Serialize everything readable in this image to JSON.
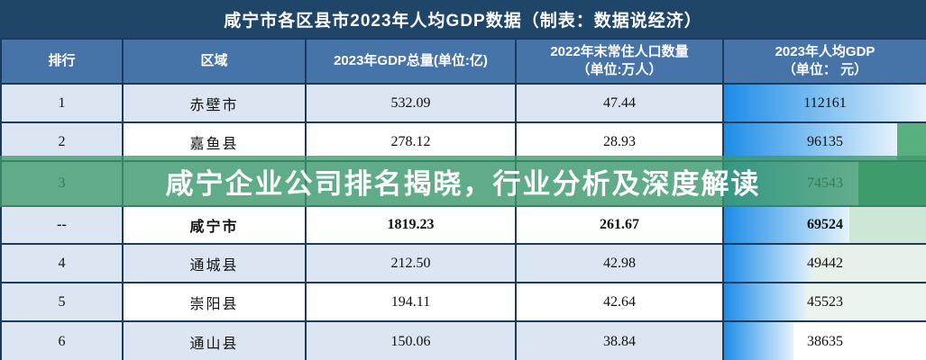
{
  "page_title": "咸宁市各区县市2023年人均GDP数据（制表：数据说经济）",
  "overlay_banner": {
    "text": "咸宁企业公司排名揭晓，行业分析及深度解读",
    "color": "#3d9a6a",
    "rgba": "rgba(61,154,106,0.78)"
  },
  "header": {
    "col_rank": "排行",
    "col_region": "区域",
    "col_gdp": "2023年GDP总量(单位:亿)",
    "col_pop_line1": "2022年末常住人口数量",
    "col_pop_line2": "（单位:万人）",
    "col_percap_line1": "2023年人均GDP",
    "col_percap_line2": "（单位： 元）"
  },
  "chart_data": {
    "type": "table",
    "title": "咸宁市各区县市2023年人均GDP数据",
    "source_note": "制表：数据说经济",
    "columns": [
      "排行",
      "区域",
      "2023年GDP总量(单位:亿)",
      "2022年末常住人口数量（单位:万人）",
      "2023年人均GDP（单位：元）"
    ],
    "per_capita_max": 112161,
    "rows": [
      {
        "rank": "1",
        "region": "赤壁市",
        "gdp_2023": "532.09",
        "population_2022": "47.44",
        "per_capita_gdp_2023": "112161",
        "bar_value": 112161,
        "obscured": false,
        "bar_bg_after": "#ffffff"
      },
      {
        "rank": "2",
        "region": "嘉鱼县",
        "gdp_2023": "278.12",
        "population_2022": "28.93",
        "per_capita_gdp_2023": "96135",
        "bar_value": 96135,
        "obscured": false,
        "bar_bg_after": "#58b07f"
      },
      {
        "rank": "3",
        "region": "",
        "gdp_2023": "",
        "population_2022": "",
        "per_capita_gdp_2023": "74543",
        "bar_value": 74543,
        "obscured": true,
        "bar_bg_after": "#3f9e71"
      },
      {
        "rank": "--",
        "region": "咸宁市",
        "gdp_2023": "1819.23",
        "population_2022": "261.67",
        "per_capita_gdp_2023": "69524",
        "bar_value": 69524,
        "obscured": false,
        "bar_bg_after": "#cde6d6"
      },
      {
        "rank": "4",
        "region": "通城县",
        "gdp_2023": "212.50",
        "population_2022": "42.98",
        "per_capita_gdp_2023": "49442",
        "bar_value": 49442,
        "obscured": false,
        "bar_bg_after": "#e7f1e9"
      },
      {
        "rank": "5",
        "region": "崇阳县",
        "gdp_2023": "194.11",
        "population_2022": "42.64",
        "per_capita_gdp_2023": "45523",
        "bar_value": 45523,
        "obscured": false,
        "bar_bg_after": "#eaf3ec"
      },
      {
        "rank": "6",
        "region": "通山县",
        "gdp_2023": "150.06",
        "population_2022": "38.84",
        "per_capita_gdp_2023": "38635",
        "bar_value": 38635,
        "obscured": false,
        "bar_bg_after": "#ffffff"
      }
    ]
  },
  "colors": {
    "title_bar_bg": "#1f4569",
    "header_bg": "#4674a9",
    "band_light_blue": "#dbe6f2",
    "border_dark": "#1b3a5c",
    "bar_gradient_start": "#1d8ce8",
    "bar_gradient_end": "#e5f2fc",
    "overlay_green": "#3d9a6a"
  }
}
